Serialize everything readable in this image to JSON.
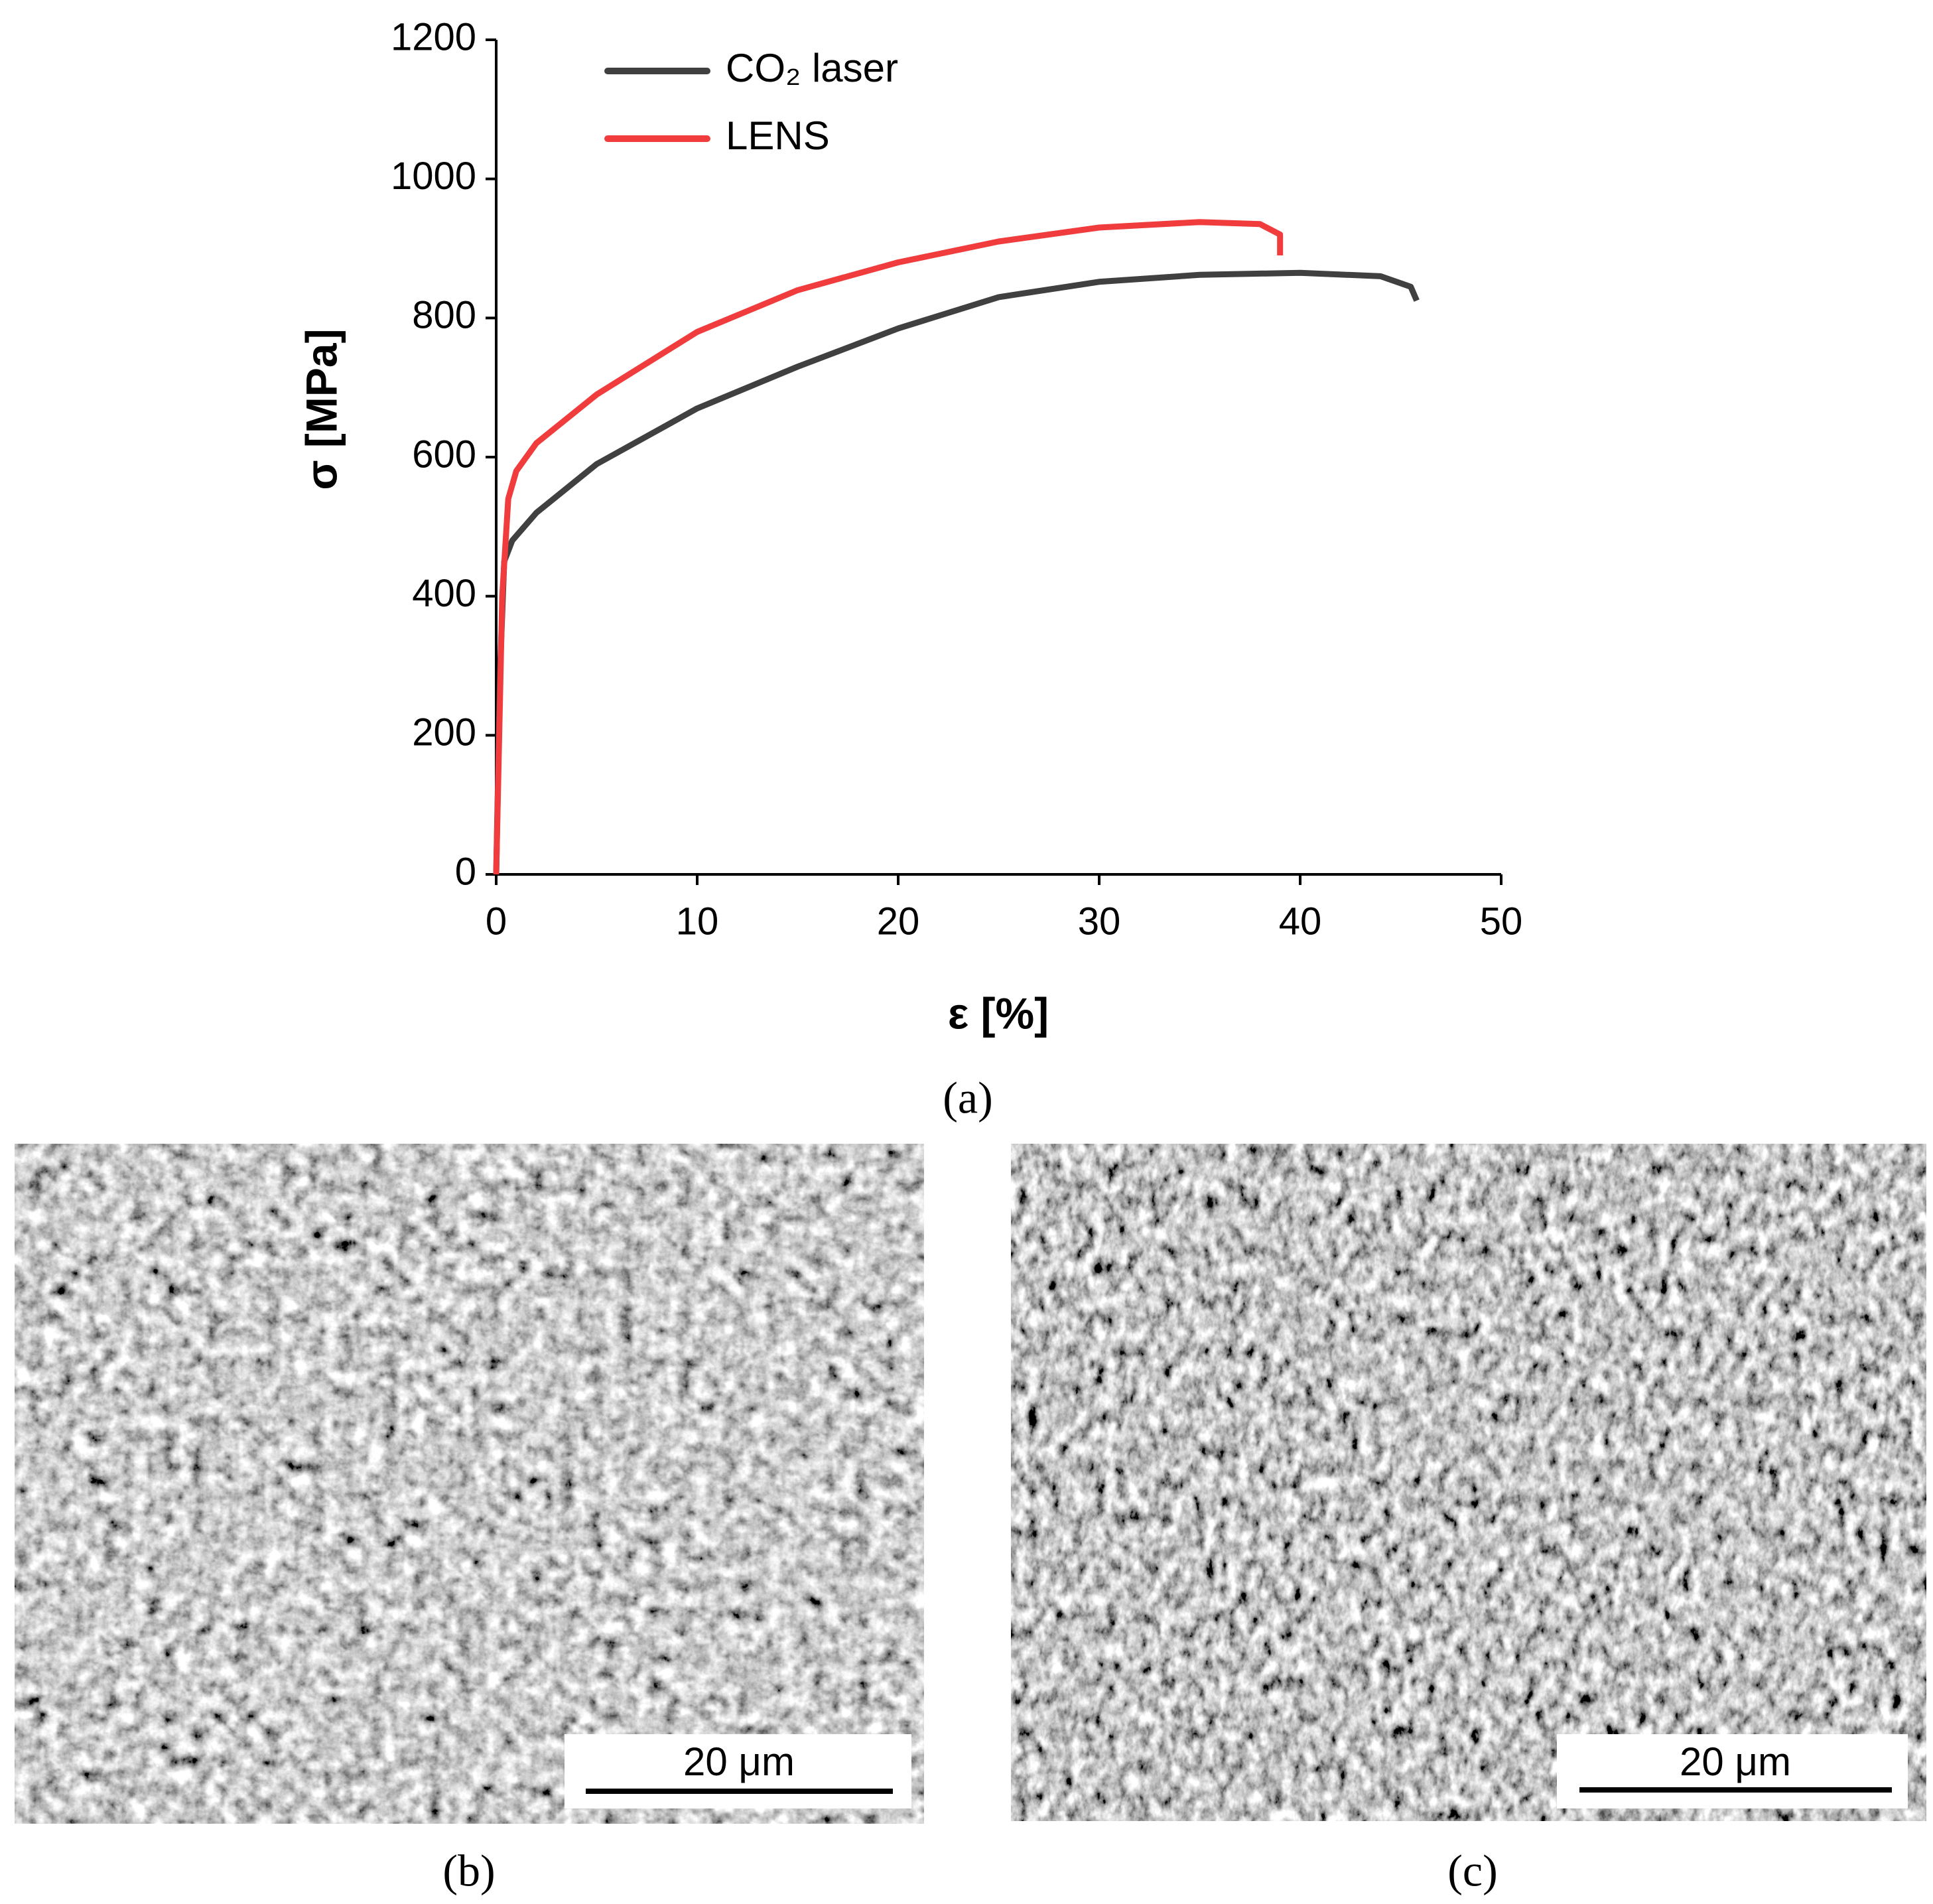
{
  "chart_data": {
    "type": "line",
    "xlabel": "ε [%]",
    "ylabel": "σ [MPa]",
    "xlim": [
      0,
      50
    ],
    "xticks": [
      0,
      10,
      20,
      30,
      40,
      50
    ],
    "ylim": [
      0,
      1200
    ],
    "yticks": [
      0,
      200,
      400,
      600,
      800,
      1000,
      1200
    ],
    "legend": "upper left",
    "series": [
      {
        "name": "CO₂ laser",
        "color": "#404040",
        "x": [
          0,
          0.2,
          0.4,
          0.8,
          2,
          5,
          10,
          15,
          20,
          25,
          30,
          35,
          40,
          44,
          45.5,
          45.8
        ],
        "values": [
          0,
          300,
          450,
          480,
          520,
          590,
          670,
          730,
          785,
          830,
          852,
          862,
          865,
          860,
          845,
          825
        ]
      },
      {
        "name": "LENS",
        "color": "#f03c3c",
        "x": [
          0,
          0.3,
          0.6,
          1,
          2,
          5,
          10,
          15,
          20,
          25,
          30,
          35,
          38,
          39,
          39
        ],
        "values": [
          0,
          400,
          540,
          580,
          620,
          690,
          780,
          840,
          880,
          910,
          930,
          938,
          935,
          920,
          890
        ]
      }
    ]
  },
  "panels": [
    "(a)",
    "(b)",
    "(c)"
  ],
  "scale_bars": [
    "20 μm",
    "20 μm"
  ]
}
